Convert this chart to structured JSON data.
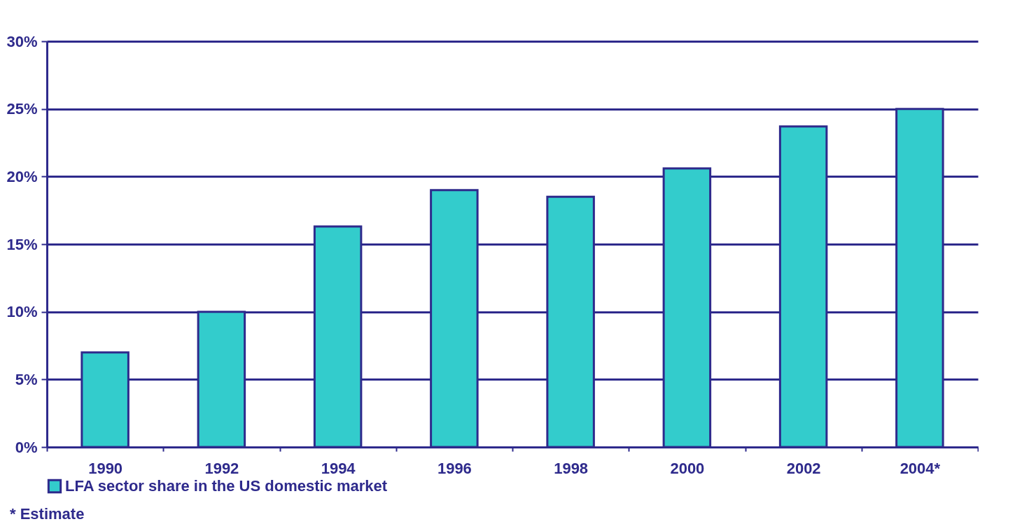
{
  "chart_data": {
    "type": "bar",
    "categories": [
      "1990",
      "1992",
      "1994",
      "1996",
      "1998",
      "2000",
      "2002",
      "2004*"
    ],
    "series": [
      {
        "name": "LFA sector share in the US domestic market",
        "color": "#33cccc",
        "values": [
          7,
          10,
          16.3,
          19,
          18.5,
          20.6,
          23.7,
          25
        ]
      }
    ],
    "ylim": [
      0,
      30
    ],
    "yticks": [
      {
        "value": 0,
        "label": "0%"
      },
      {
        "value": 5,
        "label": "5%"
      },
      {
        "value": 10,
        "label": "10%"
      },
      {
        "value": 15,
        "label": "15%"
      },
      {
        "value": 20,
        "label": "20%"
      },
      {
        "value": 25,
        "label": "25%"
      },
      {
        "value": 30,
        "label": "30%"
      }
    ],
    "grid": "y",
    "legend": "bottom",
    "annotations": [
      "* Estimate"
    ]
  }
}
